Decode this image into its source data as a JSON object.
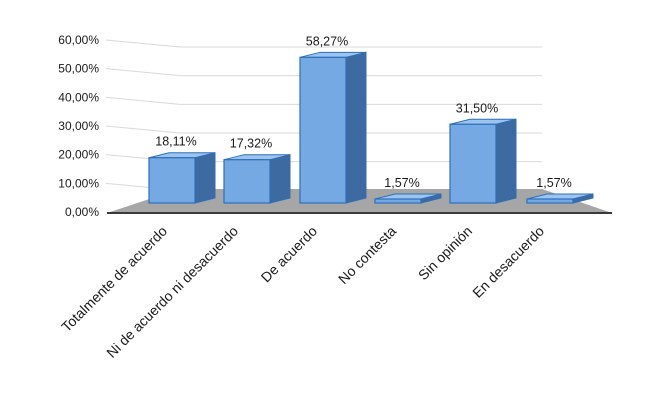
{
  "chart_data": {
    "type": "bar",
    "categories": [
      "Totalmente de acuerdo",
      "Ni de acuerdo ni desacuerdo",
      "De acuerdo",
      "No contesta",
      "Sin opinión",
      "En desacuerdo"
    ],
    "values": [
      18.11,
      17.32,
      58.27,
      1.57,
      31.5,
      1.57
    ],
    "data_labels": [
      "18,11%",
      "17,32%",
      "58,27%",
      "1,57%",
      "31,50%",
      "1,57%"
    ],
    "yticks": [
      "0,00%",
      "10,00%",
      "20,00%",
      "30,00%",
      "40,00%",
      "50,00%",
      "60,00%"
    ],
    "ylim": [
      0,
      60
    ],
    "grid": true,
    "title": "",
    "xlabel": "",
    "ylabel": "",
    "style": "3d-column",
    "colors": {
      "bar_front": "#74a9e3",
      "bar_side": "#3d6aa0",
      "bar_top": "#9cc4ee",
      "bar_edge": "#2e6fb9",
      "floor": "#a6a6a6",
      "gridline": "#d9d9d9"
    }
  }
}
